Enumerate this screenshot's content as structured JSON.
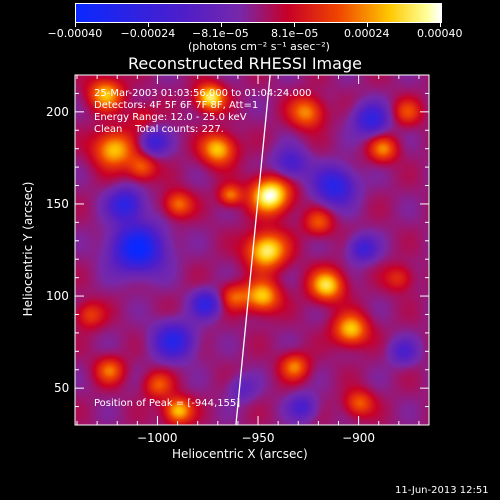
{
  "chart_data": {
    "type": "heatmap",
    "title": "Reconstructed RHESSI Image",
    "xlabel": "Heliocentric X (arcsec)",
    "ylabel": "Heliocentric Y (arcsec)",
    "xlim": [
      -1041,
      -948
    ],
    "ylim": [
      30,
      220
    ],
    "x_ticks": [
      {
        "value": -1000,
        "label": "−1000"
      },
      {
        "value": -950,
        "label": "−950"
      },
      {
        "value": -900,
        "label": "−900"
      }
    ],
    "y_ticks": [
      {
        "value": 50,
        "label": "50"
      },
      {
        "value": 100,
        "label": "100"
      },
      {
        "value": 150,
        "label": "150"
      },
      {
        "value": 200,
        "label": "200"
      }
    ],
    "colorbar": {
      "min": -0.0004,
      "max": 0.0004,
      "label": "(photons cm⁻² s⁻¹ asec⁻²)",
      "ticks": [
        {
          "value": -0.0004,
          "label": "−0.00040"
        },
        {
          "value": -0.00024,
          "label": "−0.00024"
        },
        {
          "value": -8.1e-05,
          "label": "−8.1e−05"
        },
        {
          "value": 8.1e-05,
          "label": "8.1e−05"
        },
        {
          "value": 0.00024,
          "label": "0.00024"
        },
        {
          "value": 0.0004,
          "label": "0.00040"
        }
      ]
    },
    "annotations": {
      "time": "25-Mar-2003 01:03:56.000 to 01:04:24.000",
      "detectors": "Detectors: 4F 5F 6F 7F 8F, Att=1",
      "energy": "Energy Range: 12.0 - 25.0 keV",
      "clean": "Clean    Total counts: 227.",
      "peak": "Position of Peak = [-944,155]"
    },
    "peak": {
      "x": -944,
      "y": 155
    },
    "limb_line": [
      {
        "x": -944,
        "y": 220
      },
      {
        "x": -961,
        "y": 30
      }
    ],
    "sources": [
      {
        "x": -1026,
        "y": 210,
        "v": 0.00028,
        "s": 6
      },
      {
        "x": -1022,
        "y": 180,
        "v": 0.0003,
        "s": 7
      },
      {
        "x": -1008,
        "y": 170,
        "v": 0.0002,
        "s": 5
      },
      {
        "x": -1008,
        "y": 198,
        "v": 0.0001,
        "s": 5
      },
      {
        "x": -990,
        "y": 150,
        "v": 0.00022,
        "s": 5
      },
      {
        "x": -974,
        "y": 208,
        "v": 0.00036,
        "s": 5
      },
      {
        "x": -970,
        "y": 180,
        "v": 0.0003,
        "s": 6
      },
      {
        "x": -964,
        "y": 155,
        "v": 0.00022,
        "s": 4
      },
      {
        "x": -962,
        "y": 100,
        "v": 0.00018,
        "s": 5
      },
      {
        "x": -944,
        "y": 155,
        "v": 0.0004,
        "s": 7
      },
      {
        "x": -946,
        "y": 125,
        "v": 0.00036,
        "s": 7
      },
      {
        "x": -948,
        "y": 100,
        "v": 0.0003,
        "s": 6
      },
      {
        "x": -926,
        "y": 200,
        "v": 0.00024,
        "s": 6
      },
      {
        "x": -920,
        "y": 140,
        "v": 0.00018,
        "s": 5
      },
      {
        "x": -916,
        "y": 106,
        "v": 0.00032,
        "s": 6
      },
      {
        "x": -904,
        "y": 82,
        "v": 0.0003,
        "s": 6
      },
      {
        "x": -888,
        "y": 180,
        "v": 0.00022,
        "s": 5
      },
      {
        "x": -876,
        "y": 200,
        "v": 0.00016,
        "s": 5
      },
      {
        "x": -1034,
        "y": 90,
        "v": 0.00016,
        "s": 5
      },
      {
        "x": -1024,
        "y": 60,
        "v": 0.0002,
        "s": 5
      },
      {
        "x": -1000,
        "y": 52,
        "v": 0.00018,
        "s": 5
      },
      {
        "x": -990,
        "y": 38,
        "v": 0.0003,
        "s": 5
      },
      {
        "x": -932,
        "y": 62,
        "v": 0.00022,
        "s": 5
      },
      {
        "x": -900,
        "y": 42,
        "v": 0.0002,
        "s": 5
      },
      {
        "x": -880,
        "y": 110,
        "v": 0.00014,
        "s": 5
      },
      {
        "x": -1010,
        "y": 126,
        "v": -0.0004,
        "s": 9
      },
      {
        "x": -1016,
        "y": 150,
        "v": -0.00028,
        "s": 6
      },
      {
        "x": -992,
        "y": 76,
        "v": -0.00028,
        "s": 7
      },
      {
        "x": -976,
        "y": 96,
        "v": -0.00026,
        "s": 5
      },
      {
        "x": -1002,
        "y": 184,
        "v": -0.00022,
        "s": 5
      },
      {
        "x": -934,
        "y": 172,
        "v": -0.0002,
        "s": 6
      },
      {
        "x": -912,
        "y": 160,
        "v": -0.0003,
        "s": 7
      },
      {
        "x": -894,
        "y": 196,
        "v": -0.00026,
        "s": 6
      },
      {
        "x": -898,
        "y": 126,
        "v": -0.00022,
        "s": 5
      },
      {
        "x": -928,
        "y": 40,
        "v": -0.00018,
        "s": 5
      },
      {
        "x": -878,
        "y": 70,
        "v": -0.00016,
        "s": 5
      },
      {
        "x": -958,
        "y": 50,
        "v": -0.00012,
        "s": 5
      }
    ]
  },
  "footer": {
    "timestamp": "11-Jun-2013 12:51"
  }
}
